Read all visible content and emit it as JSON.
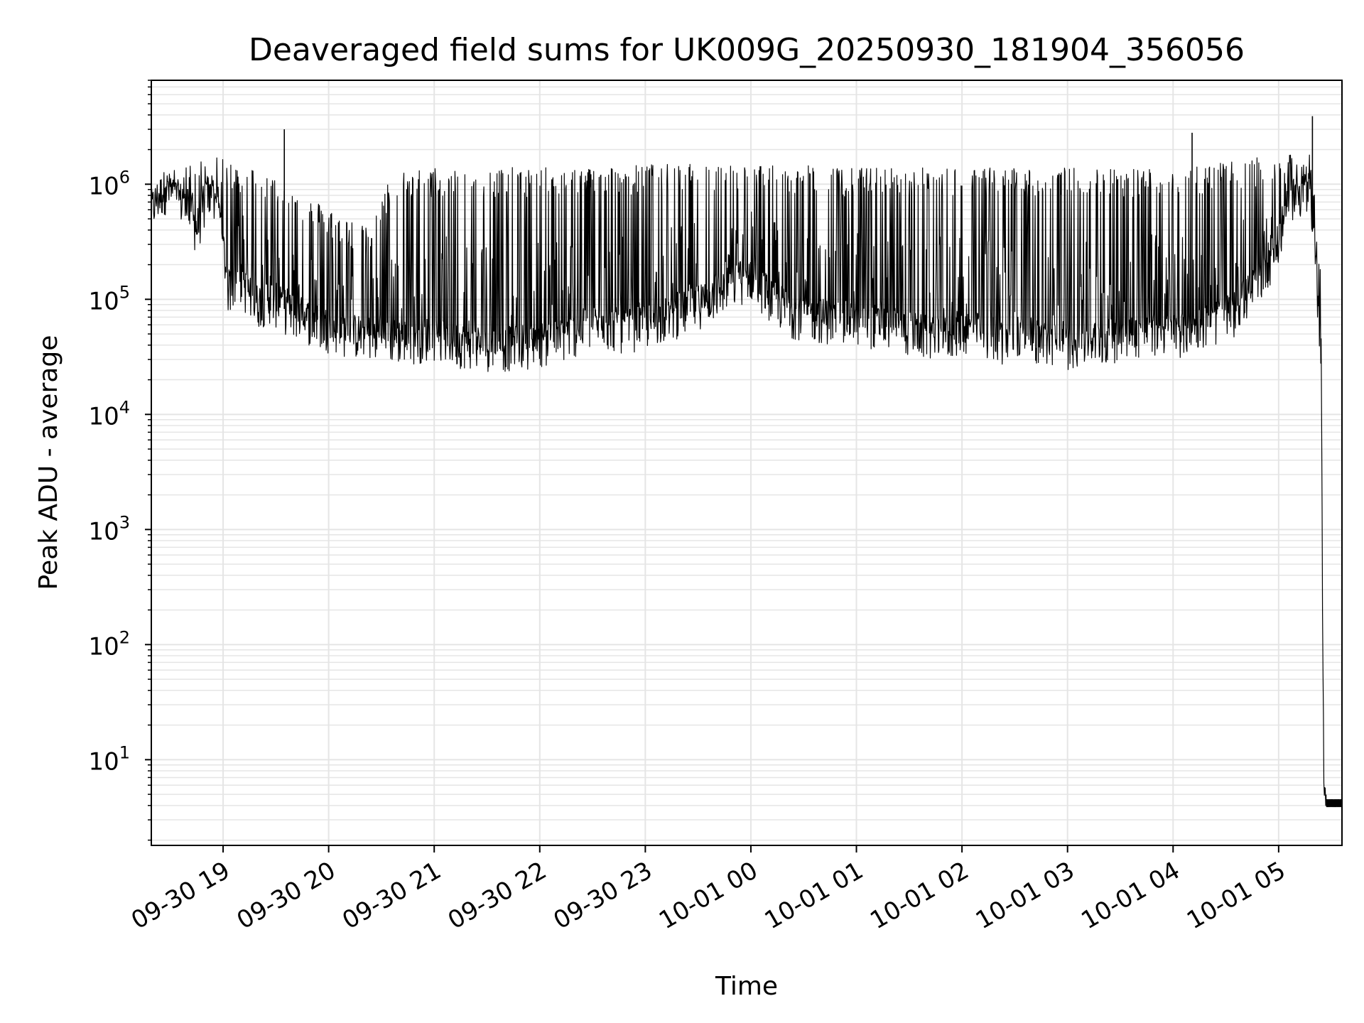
{
  "chart_data": {
    "type": "line",
    "title": "Deaveraged field sums for UK009G_20250930_181904_356056",
    "xlabel": "Time",
    "ylabel": "Peak ADU - average",
    "yscale": "log",
    "ylim": [
      1.8,
      8000000
    ],
    "xlim_hours": [
      18.32,
      29.6
    ],
    "grid": true,
    "grid_color": "#e5e5e5",
    "line_color": "#000000",
    "x_ticks": [
      {
        "hour": 19,
        "label": "09-30 19"
      },
      {
        "hour": 20,
        "label": "09-30 20"
      },
      {
        "hour": 21,
        "label": "09-30 21"
      },
      {
        "hour": 22,
        "label": "09-30 22"
      },
      {
        "hour": 23,
        "label": "09-30 23"
      },
      {
        "hour": 24,
        "label": "10-01 00"
      },
      {
        "hour": 25,
        "label": "10-01 01"
      },
      {
        "hour": 26,
        "label": "10-01 02"
      },
      {
        "hour": 27,
        "label": "10-01 03"
      },
      {
        "hour": 28,
        "label": "10-01 04"
      },
      {
        "hour": 29,
        "label": "10-01 05"
      }
    ],
    "y_ticks": [
      {
        "value": 10,
        "base": "10",
        "exp": "1"
      },
      {
        "value": 100,
        "base": "10",
        "exp": "2"
      },
      {
        "value": 1000,
        "base": "10",
        "exp": "3"
      },
      {
        "value": 10000,
        "base": "10",
        "exp": "4"
      },
      {
        "value": 100000,
        "base": "10",
        "exp": "5"
      },
      {
        "value": 1000000,
        "base": "10",
        "exp": "6"
      }
    ],
    "series": [
      {
        "name": "deaveraged field sum",
        "x_hours": [
          18.32,
          18.45,
          18.6,
          18.75,
          18.85,
          18.95,
          19.05,
          19.15,
          19.3,
          19.45,
          19.6,
          19.75,
          19.9,
          20.05,
          20.2,
          20.4,
          20.6,
          20.8,
          21.0,
          21.2,
          21.4,
          21.6,
          21.8,
          22.0,
          22.2,
          22.4,
          22.6,
          22.8,
          23.0,
          23.2,
          23.4,
          23.6,
          23.8,
          24.0,
          24.2,
          24.4,
          24.6,
          24.8,
          25.0,
          25.2,
          25.4,
          25.6,
          25.8,
          26.0,
          26.2,
          26.4,
          26.6,
          26.8,
          27.0,
          27.2,
          27.4,
          27.6,
          27.8,
          28.0,
          28.2,
          28.4,
          28.6,
          28.8,
          29.0,
          29.1,
          29.2,
          29.25,
          29.3,
          29.35,
          29.4,
          29.43,
          29.46,
          29.6
        ],
        "baseline": [
          600000,
          900000,
          700000,
          400000,
          750000,
          700000,
          120000,
          150000,
          90000,
          100000,
          80000,
          70000,
          60000,
          55000,
          50000,
          48000,
          45000,
          45000,
          48000,
          42000,
          40000,
          38000,
          40000,
          42000,
          45000,
          55000,
          60000,
          55000,
          60000,
          70000,
          80000,
          100000,
          130000,
          160000,
          100000,
          75000,
          70000,
          65000,
          65000,
          60000,
          55000,
          50000,
          45000,
          55000,
          50000,
          45000,
          48000,
          42000,
          40000,
          42000,
          45000,
          50000,
          52000,
          50000,
          55000,
          65000,
          80000,
          140000,
          300000,
          700000,
          800000,
          900000,
          600000,
          200000,
          40000,
          4,
          4,
          4
        ],
        "peaks": [
          800000,
          1300000,
          1400000,
          1600000,
          1700000,
          1700000,
          1600000,
          1500000,
          1400000,
          1200000,
          1000000,
          800000,
          700000,
          600000,
          500000,
          400000,
          1300000,
          1350000,
          1400000,
          1400000,
          1400000,
          1400000,
          1400000,
          1400000,
          1400000,
          1400000,
          1450000,
          1450000,
          1500000,
          1500000,
          1500000,
          1500000,
          1500000,
          1500000,
          1450000,
          1450000,
          1450000,
          1400000,
          1400000,
          1400000,
          1400000,
          1400000,
          1400000,
          1400000,
          1400000,
          1400000,
          1400000,
          1400000,
          1400000,
          1400000,
          1400000,
          1400000,
          1400000,
          1450000,
          1500000,
          1500000,
          1600000,
          1700000,
          1700000,
          1800000,
          1800000,
          1900000,
          1800000,
          1000000,
          150000,
          4,
          4,
          4
        ],
        "spikes": [
          {
            "hour": 19.58,
            "value": 3000000
          },
          {
            "hour": 28.18,
            "value": 2800000
          },
          {
            "hour": 29.32,
            "value": 3900000
          }
        ],
        "tail": {
          "start_hour": 29.45,
          "value": 4.5,
          "low": 3.9
        }
      }
    ]
  }
}
